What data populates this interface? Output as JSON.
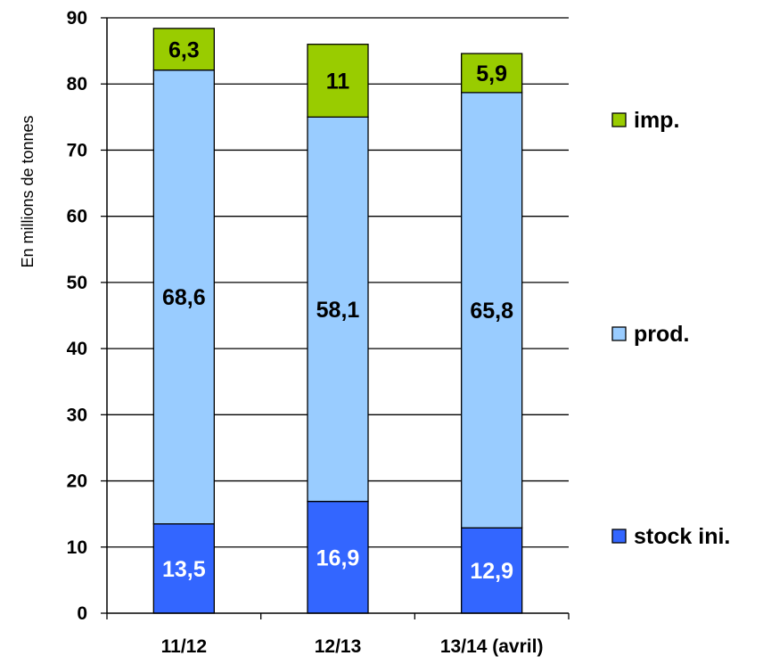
{
  "chart_data": {
    "type": "bar",
    "stacked": true,
    "categories": [
      "11/12",
      "12/13",
      "13/14 (avril)"
    ],
    "series": [
      {
        "name": "stock ini.",
        "values": [
          13.5,
          16.9,
          12.9
        ],
        "labels": [
          "13,5",
          "16,9",
          "12,9"
        ],
        "color": "#3366FF",
        "label_color": "#ffffff"
      },
      {
        "name": "prod.",
        "values": [
          68.6,
          58.1,
          65.8
        ],
        "labels": [
          "68,6",
          "58,1",
          "65,8"
        ],
        "color": "#99CCFF",
        "label_color": "#000000"
      },
      {
        "name": "imp.",
        "values": [
          6.3,
          11,
          5.9
        ],
        "labels": [
          "6,3",
          "11",
          "5,9"
        ],
        "color": "#99CC00",
        "label_color": "#000000"
      }
    ],
    "xlabel": "",
    "ylabel": "En millions de tonnes",
    "ylim": [
      0,
      90
    ],
    "yticks": [
      0,
      10,
      20,
      30,
      40,
      50,
      60,
      70,
      80,
      90
    ],
    "grid": true,
    "legend_position": "right"
  }
}
